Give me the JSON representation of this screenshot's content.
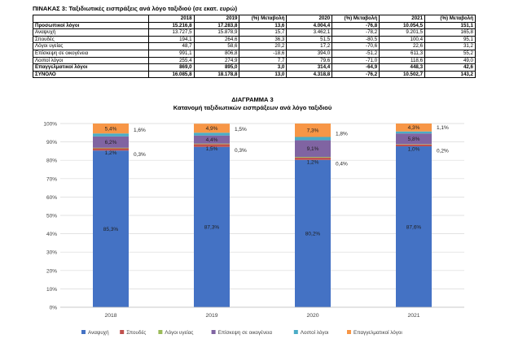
{
  "table": {
    "title": "ΠΙΝΑΚΑΣ 3: Ταξιδιωτικές εισπράξεις ανά λόγο ταξιδιού (σε εκατ. ευρώ)",
    "headers": [
      "",
      "2018",
      "2019",
      "(%) Μεταβολή",
      "2020",
      "(%) Μεταβολή",
      "2021",
      "(%) Μεταβολή"
    ],
    "rows": [
      {
        "bold": true,
        "cells": [
          "Προσωπικοί λόγοι",
          "15.216,8",
          "17.283,8",
          "13,6",
          "4.004,4",
          "-76,8",
          "10.054,5",
          "151,1"
        ]
      },
      {
        "bold": false,
        "cells": [
          "Αναψυχή",
          "13.727,5",
          "15.878,9",
          "15,7",
          "3.462,1",
          "-78,2",
          "9.201,5",
          "165,8"
        ]
      },
      {
        "bold": false,
        "cells": [
          "Σπουδές",
          "194,1",
          "264,6",
          "36,3",
          "51,5",
          "-80,5",
          "100,4",
          "95,1"
        ]
      },
      {
        "bold": false,
        "cells": [
          "Λόγοι υγείας",
          "48,7",
          "58,6",
          "20,2",
          "17,2",
          "-70,6",
          "22,6",
          "31,2"
        ]
      },
      {
        "bold": false,
        "cells": [
          "Επίσκεψη σε οικογένεια",
          "991,1",
          "806,8",
          "-18,6",
          "394,0",
          "-51,2",
          "611,3",
          "55,2"
        ]
      },
      {
        "bold": false,
        "cells": [
          "Λοιποί λόγοι",
          "255,4",
          "274,9",
          "7,7",
          "79,6",
          "-71,0",
          "118,6",
          "49,0"
        ]
      },
      {
        "bold": true,
        "cells": [
          "Επαγγελματικοί λόγοι",
          "869,0",
          "895,0",
          "3,0",
          "314,4",
          "-64,9",
          "448,3",
          "42,6"
        ]
      },
      {
        "bold": true,
        "cells": [
          "ΣΥΝΟΛΟ",
          "16.085,8",
          "18.178,8",
          "13,0",
          "4.318,8",
          "-76,2",
          "10.502,7",
          "143,2"
        ]
      }
    ]
  },
  "chart_data": {
    "type": "bar",
    "stacked": true,
    "title": "ΔΙΑΓΡΑΜΜΑ 3",
    "subtitle": "Κατανομή ταξιδιωτικών εισπράξεων ανά λόγο ταξιδιού",
    "categories": [
      "2018",
      "2019",
      "2020",
      "2021"
    ],
    "ylim": [
      0,
      100
    ],
    "yticks": [
      "0%",
      "10%",
      "20%",
      "30%",
      "40%",
      "50%",
      "60%",
      "70%",
      "80%",
      "90%",
      "100%"
    ],
    "grid": true,
    "legend_position": "bottom",
    "series": [
      {
        "name": "Αναψυχή",
        "color": "#4472c4",
        "values": [
          85.3,
          87.3,
          80.2,
          87.6
        ],
        "labels": [
          "85,3%",
          "87,3%",
          "80,2%",
          "87,6%"
        ]
      },
      {
        "name": "Σπουδές",
        "color": "#c0504d",
        "values": [
          1.2,
          1.5,
          1.2,
          1.0
        ],
        "labels": [
          "1,2%",
          "1,5%",
          "1,2%",
          "1,0%"
        ]
      },
      {
        "name": "Λόγοι υγείας",
        "color": "#9bbb59",
        "values": [
          0.3,
          0.3,
          0.4,
          0.2
        ],
        "labels": [
          "0,3%",
          "0,3%",
          "0,4%",
          "0,2%"
        ]
      },
      {
        "name": "Επίσκεψη σε οικογένεια",
        "color": "#8064a2",
        "values": [
          6.2,
          4.4,
          9.1,
          5.8
        ],
        "labels": [
          "6,2%",
          "4,4%",
          "9,1%",
          "5,8%"
        ]
      },
      {
        "name": "Λοιποί λόγοι",
        "color": "#4bacc6",
        "values": [
          1.6,
          1.5,
          1.8,
          1.1
        ],
        "labels": [
          "1,6%",
          "1,5%",
          "1,8%",
          "1,1%"
        ]
      },
      {
        "name": "Επαγγελματικοί λόγοι",
        "color": "#f79646",
        "values": [
          5.4,
          4.9,
          7.3,
          4.3
        ],
        "labels": [
          "5,4%",
          "4,9%",
          "7,3%",
          "4,3%"
        ]
      }
    ]
  }
}
